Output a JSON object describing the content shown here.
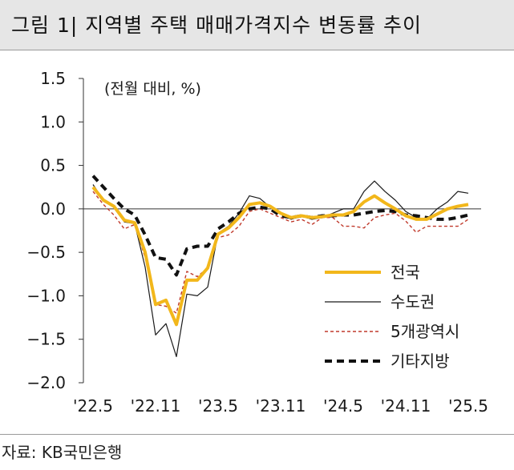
{
  "title": "그림 1| 지역별 주택 매매가격지수 변동률 추이",
  "source": "자료: KB국민은행",
  "chart_data": {
    "type": "line",
    "unit_label": "(전월 대비, %)",
    "x_tick_labels": [
      "'22.5",
      "'22.11",
      "'23.5",
      "'23.11",
      "'24.5",
      "'24.11",
      "'25.5"
    ],
    "ylim": [
      -2.0,
      1.5
    ],
    "y_ticks": [
      1.5,
      1.0,
      0.5,
      0.0,
      -0.5,
      -1.0,
      -1.5,
      -2.0
    ],
    "y_tick_labels": [
      "1.5",
      "1.0",
      "0.5",
      "0.0",
      "−0.5",
      "−1.0",
      "−1.5",
      "−2.0"
    ],
    "grid": false,
    "legend_position": "lower-right",
    "x_count": 37,
    "series": [
      {
        "name": "전국",
        "color": "#F2B71B",
        "style": "solid-thick",
        "values": [
          0.25,
          0.1,
          0.03,
          -0.13,
          -0.16,
          -0.5,
          -1.1,
          -1.05,
          -1.33,
          -0.82,
          -0.82,
          -0.68,
          -0.29,
          -0.22,
          -0.1,
          0.05,
          0.07,
          0.03,
          -0.05,
          -0.1,
          -0.08,
          -0.1,
          -0.09,
          -0.07,
          -0.07,
          -0.03,
          0.08,
          0.15,
          0.07,
          0.0,
          -0.08,
          -0.12,
          -0.12,
          -0.06,
          0.0,
          0.03,
          0.05
        ]
      },
      {
        "name": "수도권",
        "color": "#1a1a1a",
        "style": "solid-thin",
        "values": [
          0.28,
          0.1,
          0.04,
          -0.15,
          -0.17,
          -0.67,
          -1.45,
          -1.32,
          -1.7,
          -0.98,
          -1.0,
          -0.9,
          -0.28,
          -0.2,
          -0.05,
          0.15,
          0.12,
          0.02,
          -0.05,
          -0.12,
          -0.08,
          -0.12,
          -0.1,
          -0.05,
          0.0,
          0.0,
          0.2,
          0.32,
          0.2,
          0.1,
          -0.03,
          -0.1,
          -0.12,
          0.0,
          0.08,
          0.2,
          0.18
        ]
      },
      {
        "name": "5개광역시",
        "color": "#C0392B",
        "style": "dashed-thin",
        "values": [
          0.2,
          0.05,
          -0.07,
          -0.23,
          -0.18,
          -0.56,
          -1.1,
          -1.12,
          -1.2,
          -0.72,
          -0.78,
          -0.68,
          -0.33,
          -0.3,
          -0.2,
          -0.03,
          0.0,
          -0.05,
          -0.1,
          -0.15,
          -0.12,
          -0.18,
          -0.1,
          -0.1,
          -0.2,
          -0.2,
          -0.22,
          -0.1,
          -0.07,
          -0.05,
          -0.14,
          -0.27,
          -0.2,
          -0.2,
          -0.2,
          -0.2,
          -0.12
        ]
      },
      {
        "name": "기타지방",
        "color": "#111111",
        "style": "dashed-thick",
        "values": [
          0.38,
          0.25,
          0.12,
          0.0,
          -0.07,
          -0.3,
          -0.56,
          -0.58,
          -0.76,
          -0.46,
          -0.43,
          -0.43,
          -0.23,
          -0.15,
          -0.05,
          0.0,
          0.02,
          0.0,
          -0.08,
          -0.1,
          -0.08,
          -0.1,
          -0.08,
          -0.08,
          -0.07,
          -0.07,
          -0.05,
          -0.03,
          -0.02,
          -0.03,
          -0.07,
          -0.08,
          -0.1,
          -0.12,
          -0.12,
          -0.1,
          -0.07
        ]
      }
    ]
  }
}
